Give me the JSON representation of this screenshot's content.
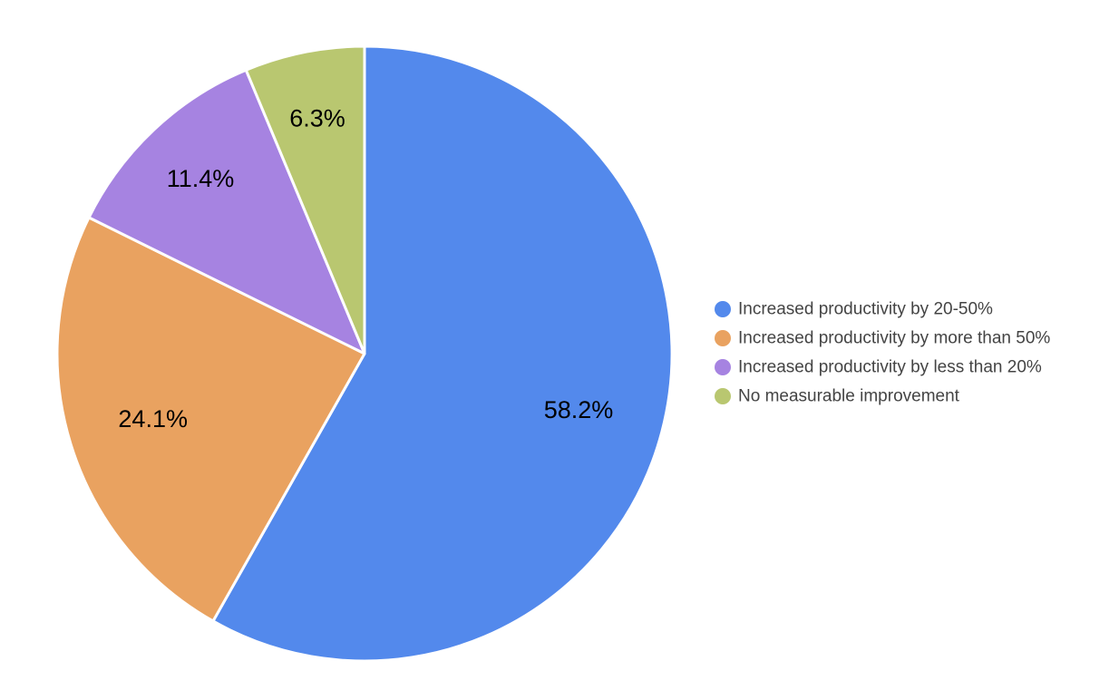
{
  "chart_data": {
    "type": "pie",
    "legend_position": "right",
    "slices": [
      {
        "label": "Increased productivity by 20-50%",
        "value": 58.2,
        "display": "58.2%",
        "color": "#5389ec"
      },
      {
        "label": "Increased productivity by more than 50%",
        "value": 24.1,
        "display": "24.1%",
        "color": "#e9a260"
      },
      {
        "label": "Increased productivity by less than 20%",
        "value": 11.4,
        "display": "11.4%",
        "color": "#a683e1"
      },
      {
        "label": "No measurable improvement",
        "value": 6.3,
        "display": "6.3%",
        "color": "#b9c770"
      }
    ]
  }
}
